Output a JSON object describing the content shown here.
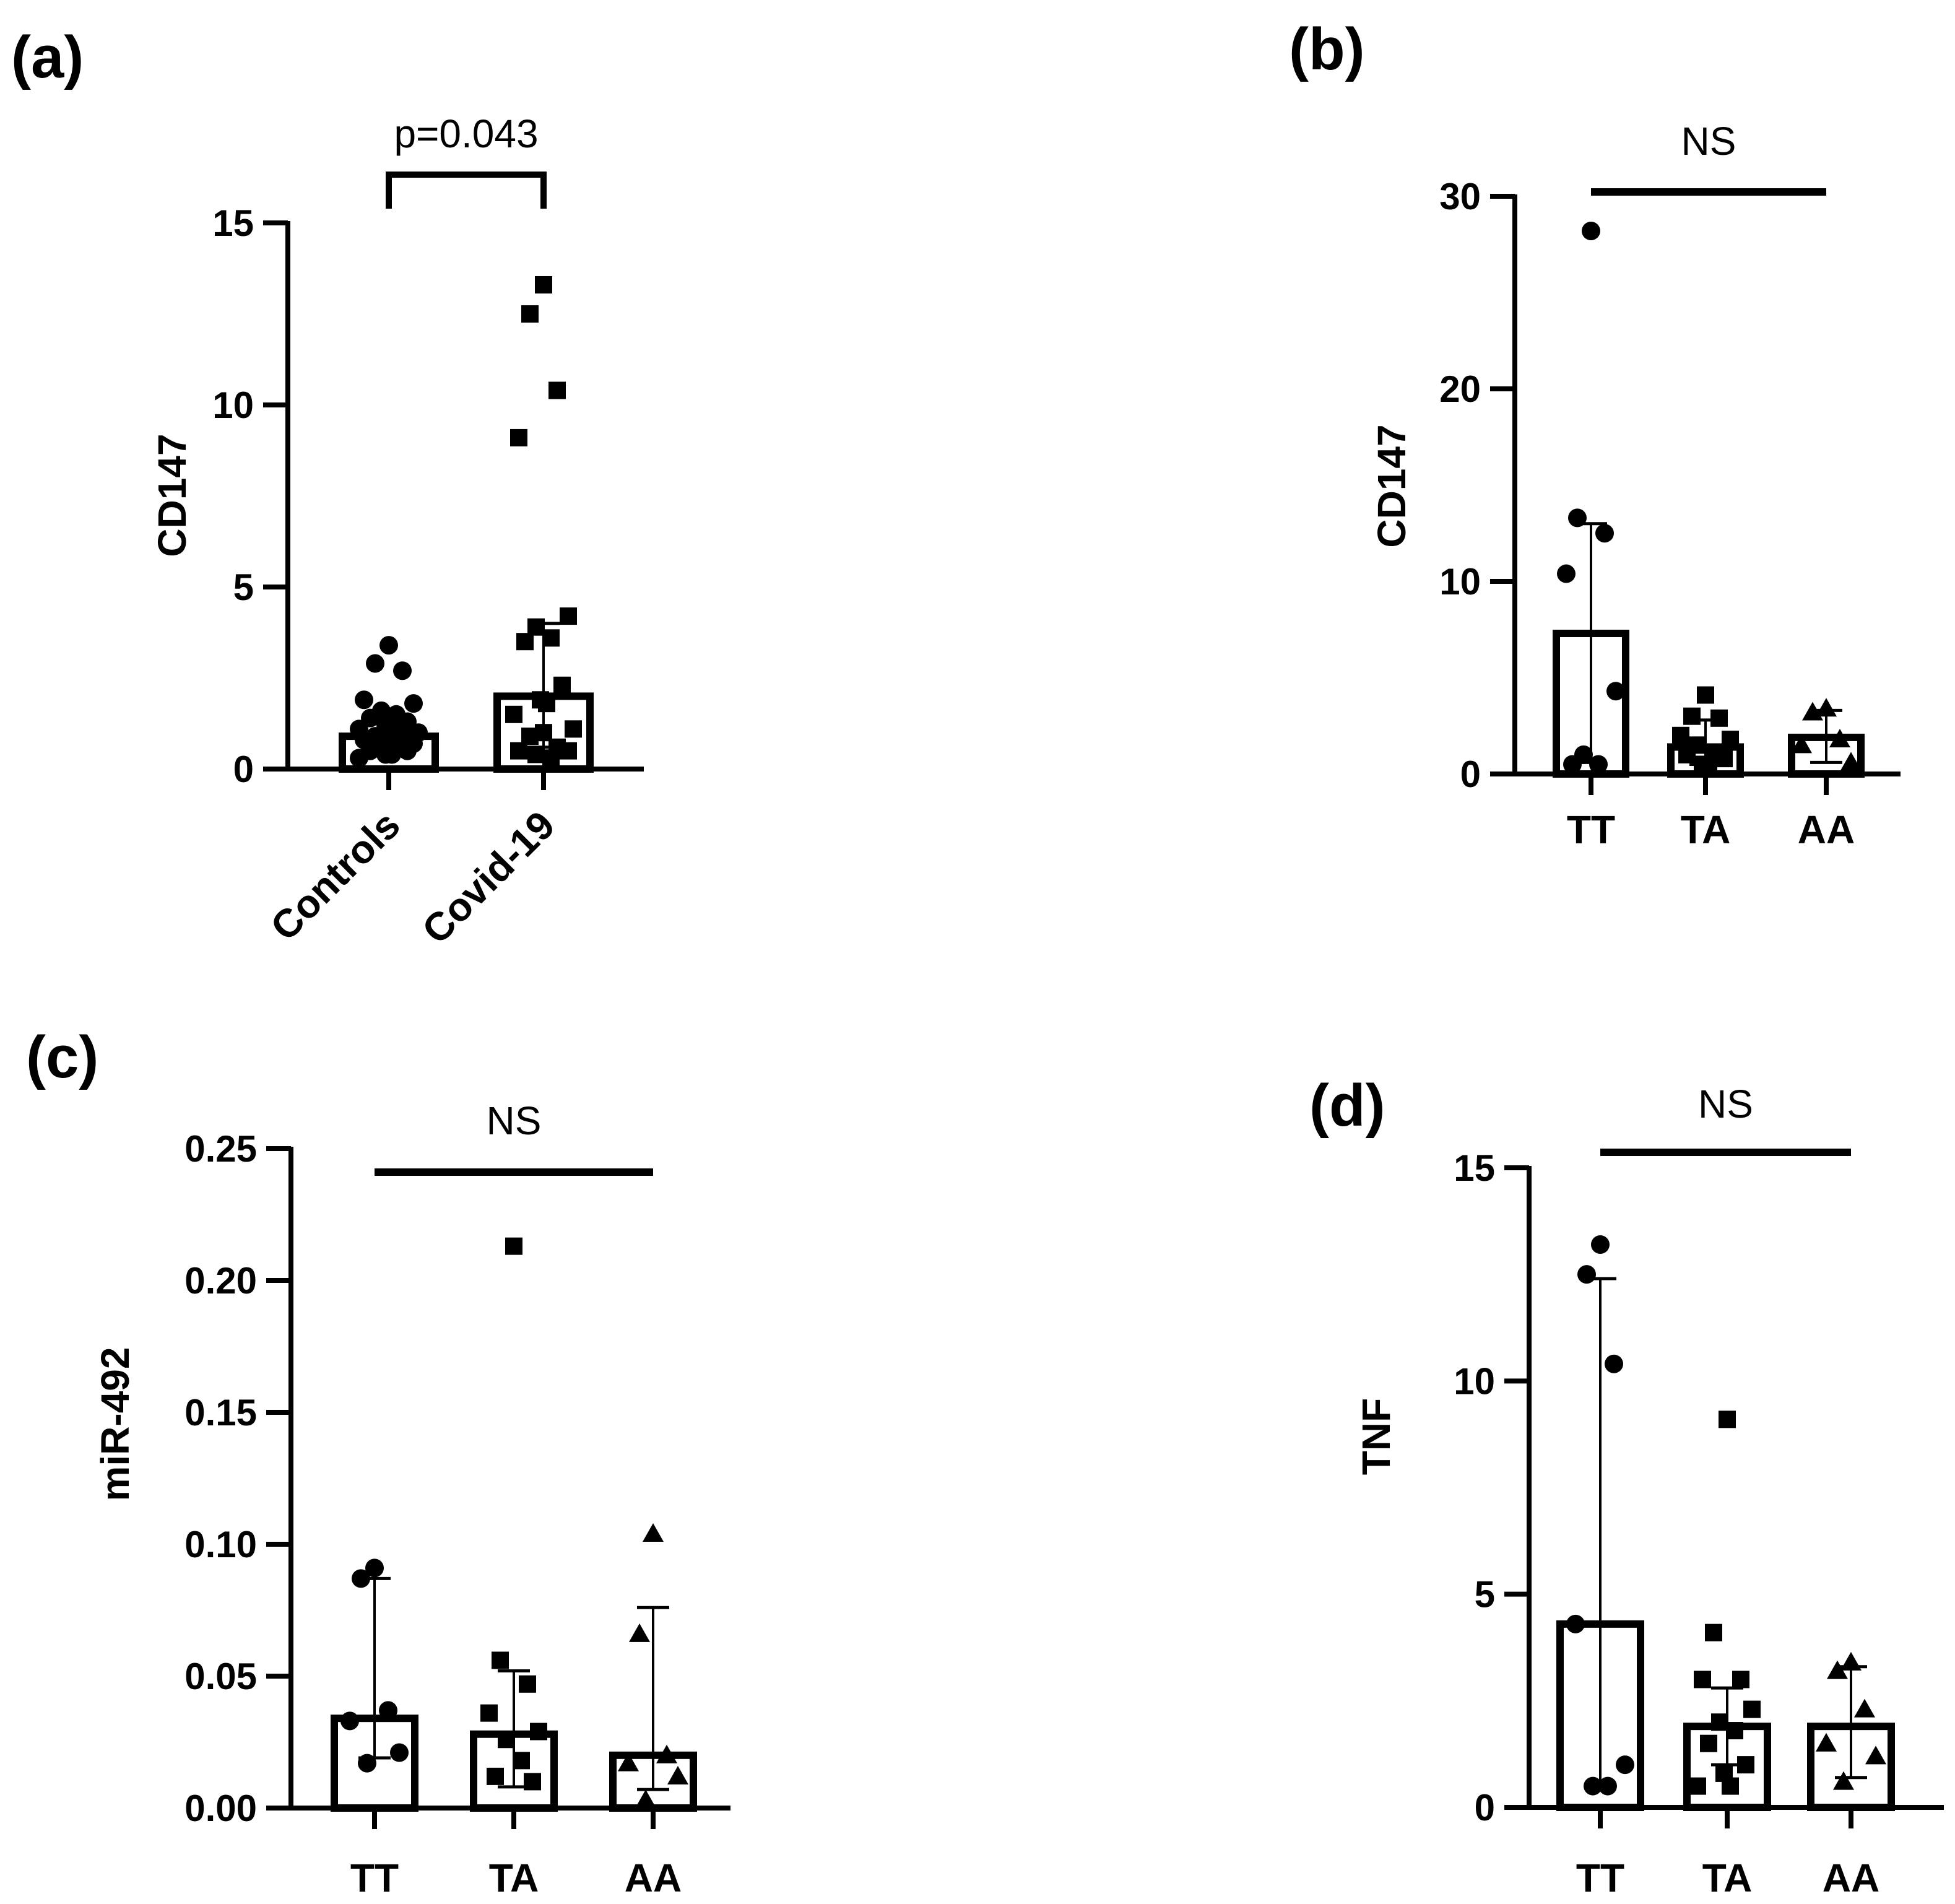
{
  "chart_data": [
    {
      "panel": "(a)",
      "type": "bar",
      "ylabel": "CD147",
      "ylim": [
        0,
        15
      ],
      "yticks": [
        "0",
        "5",
        "10",
        "15"
      ],
      "categories": [
        "Controls",
        "Covid-19"
      ],
      "rotated_categories": true,
      "bar_values": [
        0.9,
        2.0
      ],
      "error_low": [
        0.7,
        0.6
      ],
      "error_high": [
        1.4,
        4.0
      ],
      "marker": [
        "circle",
        "square"
      ],
      "points": [
        [
          3.4,
          2.9,
          2.7,
          1.9,
          1.8,
          1.6,
          1.5,
          1.4,
          1.3,
          1.2,
          1.2,
          1.1,
          1.0,
          1.0,
          0.9,
          0.9,
          0.8,
          0.7,
          0.6,
          0.6,
          0.5,
          0.5,
          0.4,
          0.4,
          0.3
        ],
        [
          13.3,
          12.5,
          10.4,
          9.1,
          4.2,
          3.9,
          3.6,
          3.5,
          2.3,
          1.9,
          1.8,
          1.5,
          1.1,
          1.0,
          0.9,
          0.6,
          0.5,
          0.5,
          0.4,
          0.3
        ]
      ],
      "annotation": {
        "text": "p=0.043",
        "style": "bracket",
        "from": 0,
        "to": 1
      }
    },
    {
      "panel": "(b)",
      "type": "bar",
      "ylabel": "CD147",
      "ylim": [
        0,
        30
      ],
      "yticks": [
        "0",
        "10",
        "20",
        "30"
      ],
      "categories": [
        "TT",
        "TA",
        "AA"
      ],
      "rotated_categories": false,
      "bar_values": [
        7.3,
        1.4,
        1.9
      ],
      "error_low": [
        0.6,
        0.5,
        0.6
      ],
      "error_high": [
        13.0,
        2.8,
        3.3
      ],
      "marker": [
        "circle",
        "square",
        "triangle"
      ],
      "points": [
        [
          28.2,
          13.3,
          12.5,
          10.4,
          4.3,
          1.0,
          0.5,
          0.5
        ],
        [
          4.1,
          3.0,
          2.9,
          2.0,
          1.8,
          1.5,
          1.1,
          1.0,
          0.8,
          0.5,
          0.4
        ],
        [
          3.4,
          3.2,
          1.8,
          1.5,
          0.6
        ]
      ],
      "annotation": {
        "text": "NS",
        "style": "line",
        "from": 0,
        "to": 2
      }
    },
    {
      "panel": "(c)",
      "type": "bar",
      "ylabel": "miR-492",
      "ylim": [
        0,
        0.25
      ],
      "yticks": [
        "0.00",
        "0.05",
        "0.10",
        "0.15",
        "0.20",
        "0.25"
      ],
      "categories": [
        "TT",
        "TA",
        "AA"
      ],
      "rotated_categories": false,
      "bar_values": [
        0.034,
        0.028,
        0.02
      ],
      "error_low": [
        0.019,
        0.008,
        0.007
      ],
      "error_high": [
        0.087,
        0.052,
        0.076
      ],
      "marker": [
        "circle",
        "square",
        "triangle"
      ],
      "points": [
        [
          0.091,
          0.087,
          0.037,
          0.033,
          0.021,
          0.017
        ],
        [
          0.213,
          0.056,
          0.047,
          0.036,
          0.029,
          0.026,
          0.018,
          0.012,
          0.01
        ],
        [
          0.104,
          0.066,
          0.02,
          0.017,
          0.012,
          0.003
        ]
      ],
      "annotation": {
        "text": "NS",
        "style": "line",
        "from": 0,
        "to": 2
      }
    },
    {
      "panel": "(d)",
      "type": "bar",
      "ylabel": "TNF",
      "ylim": [
        0,
        15
      ],
      "yticks": [
        "0",
        "5",
        "10",
        "15"
      ],
      "categories": [
        "TT",
        "TA",
        "AA"
      ],
      "rotated_categories": false,
      "bar_values": [
        4.3,
        1.9,
        1.9
      ],
      "error_low": [
        0.5,
        1.0,
        0.7
      ],
      "error_high": [
        12.4,
        2.8,
        3.3
      ],
      "marker": [
        "circle",
        "square",
        "triangle"
      ],
      "points": [
        [
          13.2,
          12.5,
          10.4,
          4.3,
          1.0,
          0.5,
          0.5
        ],
        [
          9.1,
          4.1,
          3.0,
          3.0,
          2.3,
          2.0,
          1.8,
          1.5,
          1.0,
          0.8,
          0.5,
          0.5
        ],
        [
          3.4,
          3.2,
          2.3,
          1.5,
          1.2,
          0.6
        ]
      ],
      "annotation": {
        "text": "NS",
        "style": "line",
        "from": 0,
        "to": 2
      }
    }
  ]
}
